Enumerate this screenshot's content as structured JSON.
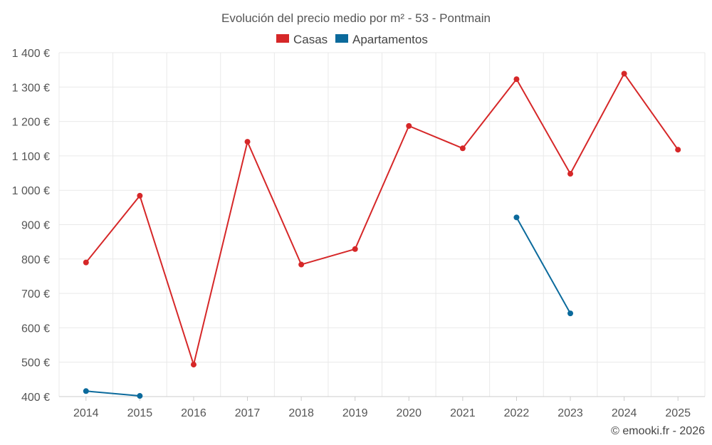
{
  "chart_data": {
    "type": "line",
    "title": "Evolución del precio medio por m² - 53 - Pontmain",
    "categories": [
      "2014",
      "2015",
      "2016",
      "2017",
      "2018",
      "2019",
      "2020",
      "2021",
      "2022",
      "2023",
      "2024",
      "2025"
    ],
    "series": [
      {
        "name": "Casas",
        "color": "#d62728",
        "values": [
          790,
          984,
          493,
          1141,
          784,
          829,
          1187,
          1122,
          1323,
          1048,
          1339,
          1118
        ]
      },
      {
        "name": "Apartamentos",
        "color": "#0b6a9c",
        "values": [
          416,
          402,
          null,
          null,
          null,
          null,
          null,
          null,
          921,
          642,
          null,
          null
        ]
      }
    ],
    "ylim": [
      400,
      1400
    ],
    "yticks": [
      400,
      500,
      600,
      700,
      800,
      900,
      1000,
      1100,
      1200,
      1300,
      1400
    ],
    "ytick_labels": [
      "400 €",
      "500 €",
      "600 €",
      "700 €",
      "800 €",
      "900 €",
      "1 000 €",
      "1 100 €",
      "1 200 €",
      "1 300 €",
      "1 400 €"
    ],
    "xlabel": "",
    "ylabel": "",
    "legend_position": "top-center",
    "grid": true
  },
  "credit": "© emooki.fr - 2026"
}
